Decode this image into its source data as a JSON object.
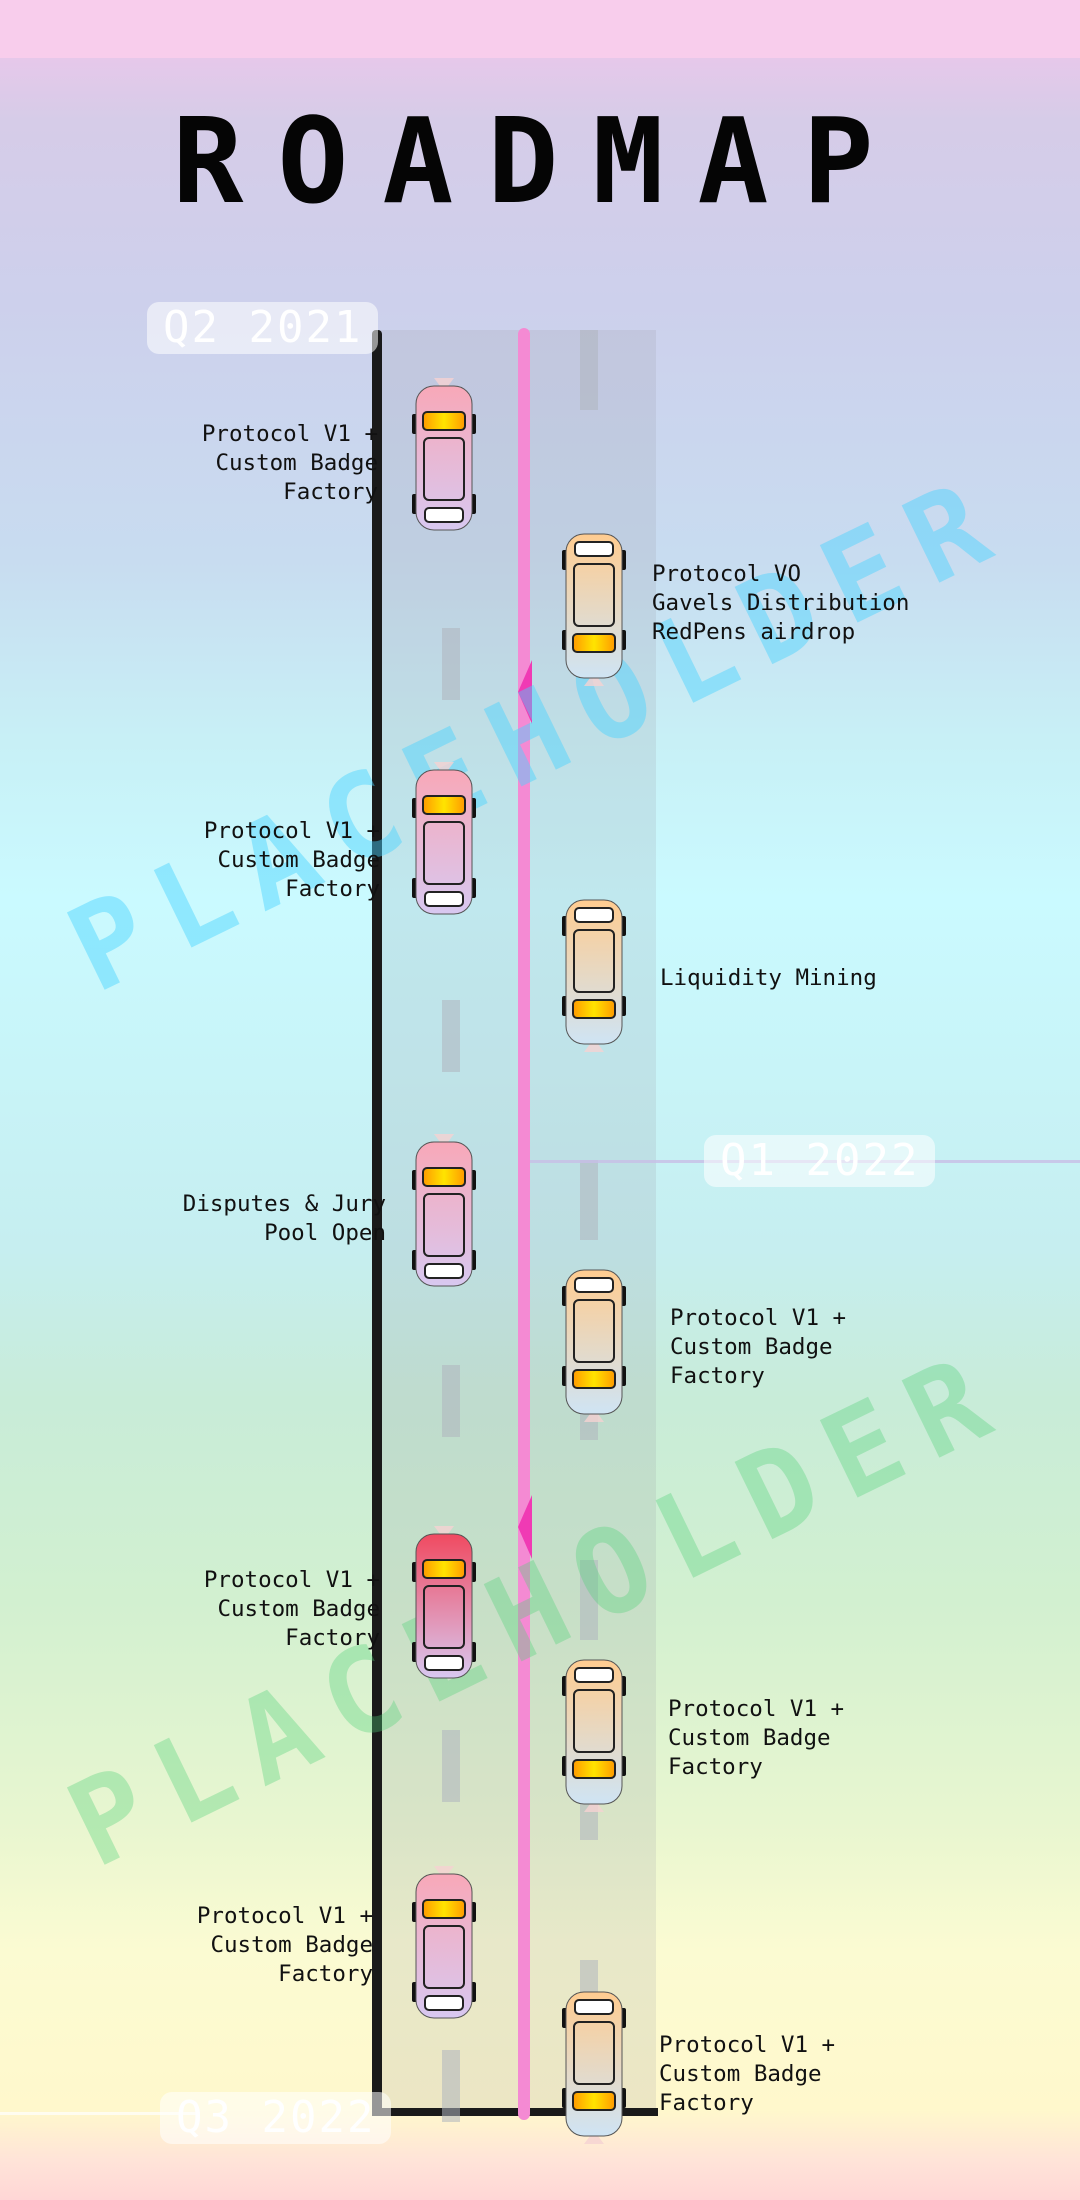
{
  "page": {
    "title": "ROADMAP",
    "watermark": "PLACEHOLDER"
  },
  "quarters": [
    "Q2 2021",
    "Q1 2022",
    "Q3 2022"
  ],
  "milestones": {
    "left": [
      "Protocol V1 +\nCustom Badge\nFactory",
      "Protocol V1 +\nCustom Badge\nFactory",
      "Disputes & Jury\nPool Open",
      "Protocol V1 +\nCustom Badge\nFactory",
      "Protocol V1 +\nCustom Badge\nFactory"
    ],
    "right": [
      "Protocol VO\nGavels Distribution\nRedPens airdrop",
      "Liquidity Mining",
      "Protocol V1 +\nCustom Badge\nFactory",
      "Protocol V1 +\nCustom Badge\nFactory",
      "Protocol V1 +\nCustom Badge\nFactory"
    ]
  },
  "colors": {
    "center_line": "#f48ad3",
    "left_car_body": "#f2d6e8",
    "right_car_body": "#d4e8ee"
  },
  "icons": {
    "left_car": "car-top-view-icon",
    "right_car": "car-top-view-icon"
  }
}
